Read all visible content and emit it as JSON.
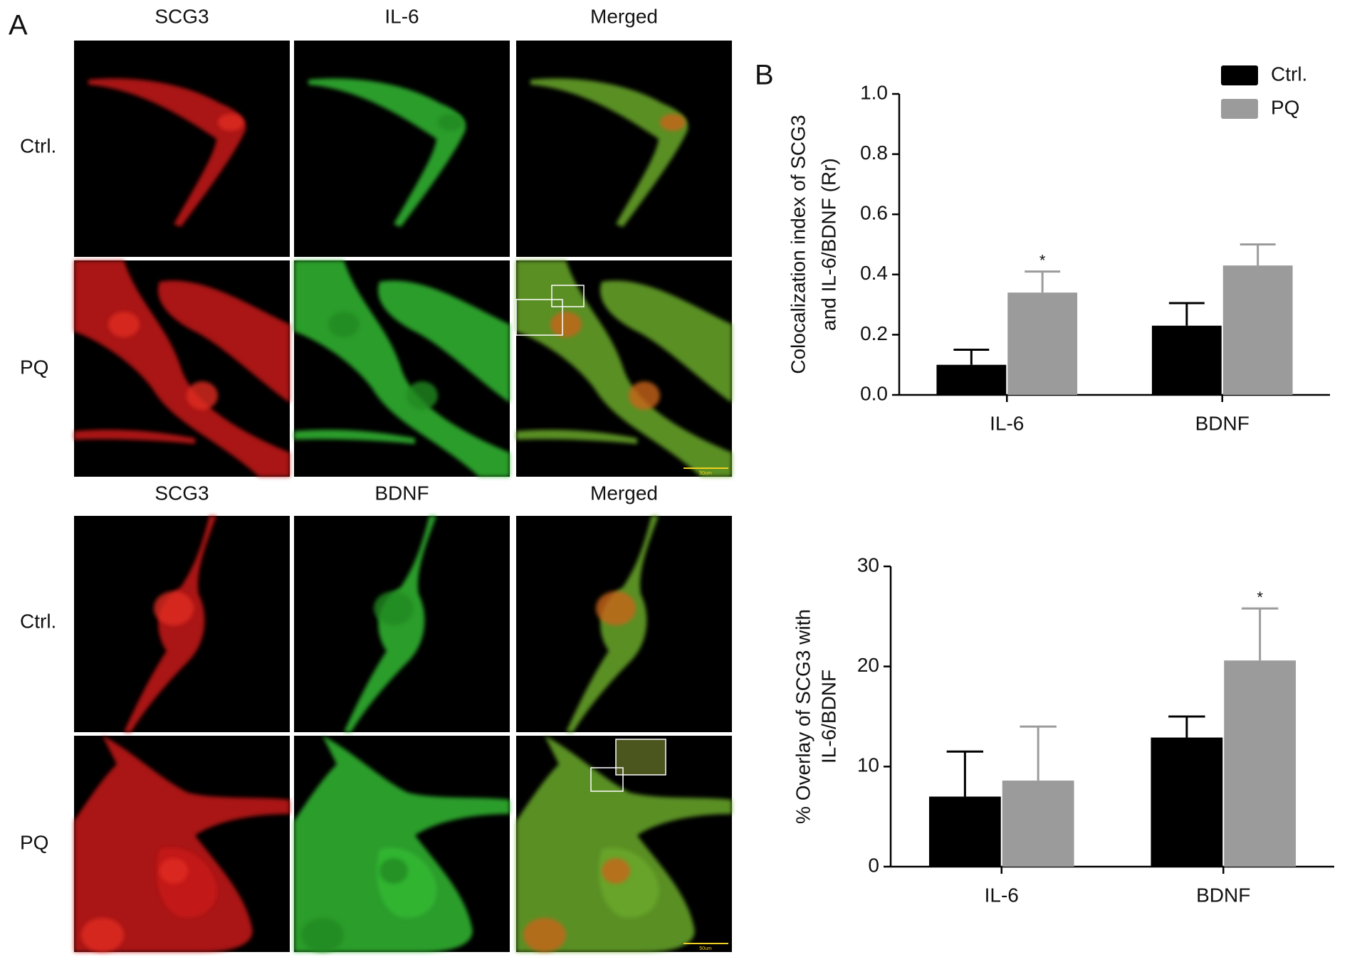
{
  "panel_a": {
    "label": "A",
    "top_columns": [
      "SCG3",
      "IL-6",
      "Merged"
    ],
    "bottom_columns": [
      "SCG3",
      "BDNF",
      "Merged"
    ],
    "row_labels": [
      "Ctrl.",
      "PQ",
      "Ctrl.",
      "PQ"
    ],
    "scale_bar_label": "50um"
  },
  "panel_b": {
    "label": "B"
  },
  "chart_data": [
    {
      "type": "bar",
      "y_label": [
        "Colocalization index of SCG3",
        "and IL-6/BDNF (Rr)"
      ],
      "categories": [
        "IL-6",
        "BDNF"
      ],
      "series": [
        {
          "name": "Ctrl.",
          "color": "#000000",
          "values": [
            0.1,
            0.23
          ],
          "errors": [
            0.05,
            0.075
          ]
        },
        {
          "name": "PQ",
          "color": "#9b9b9b",
          "values": [
            0.34,
            0.43
          ],
          "errors": [
            0.07,
            0.07
          ]
        }
      ],
      "ylim": [
        0,
        1.0
      ],
      "yticks": [
        {
          "value": 0,
          "label": "0.0"
        },
        {
          "value": 0.2,
          "label": "0.2"
        },
        {
          "value": 0.4,
          "label": "0.4"
        },
        {
          "value": 0.6,
          "label": "0.6"
        },
        {
          "value": 0.8,
          "label": "0.8"
        },
        {
          "value": 1.0,
          "label": "1.0"
        }
      ],
      "legend": "upper right",
      "annotations": [
        {
          "text": "*",
          "series": 1,
          "index": 0
        }
      ]
    },
    {
      "type": "bar",
      "y_label": [
        "% Overlay of SCG3 with",
        "IL-6/BDNF"
      ],
      "categories": [
        "IL-6",
        "BDNF"
      ],
      "series": [
        {
          "color": "#000000",
          "values": [
            7.0,
            12.9
          ],
          "errors": [
            4.5,
            2.1
          ]
        },
        {
          "color": "#9b9b9b",
          "values": [
            8.6,
            20.6
          ],
          "errors": [
            5.4,
            5.2
          ]
        }
      ],
      "ylim": [
        0,
        30
      ],
      "yticks": [
        0,
        10,
        20,
        30
      ],
      "annotations": [
        {
          "text": "*",
          "series": 1,
          "index": 1
        }
      ]
    }
  ]
}
